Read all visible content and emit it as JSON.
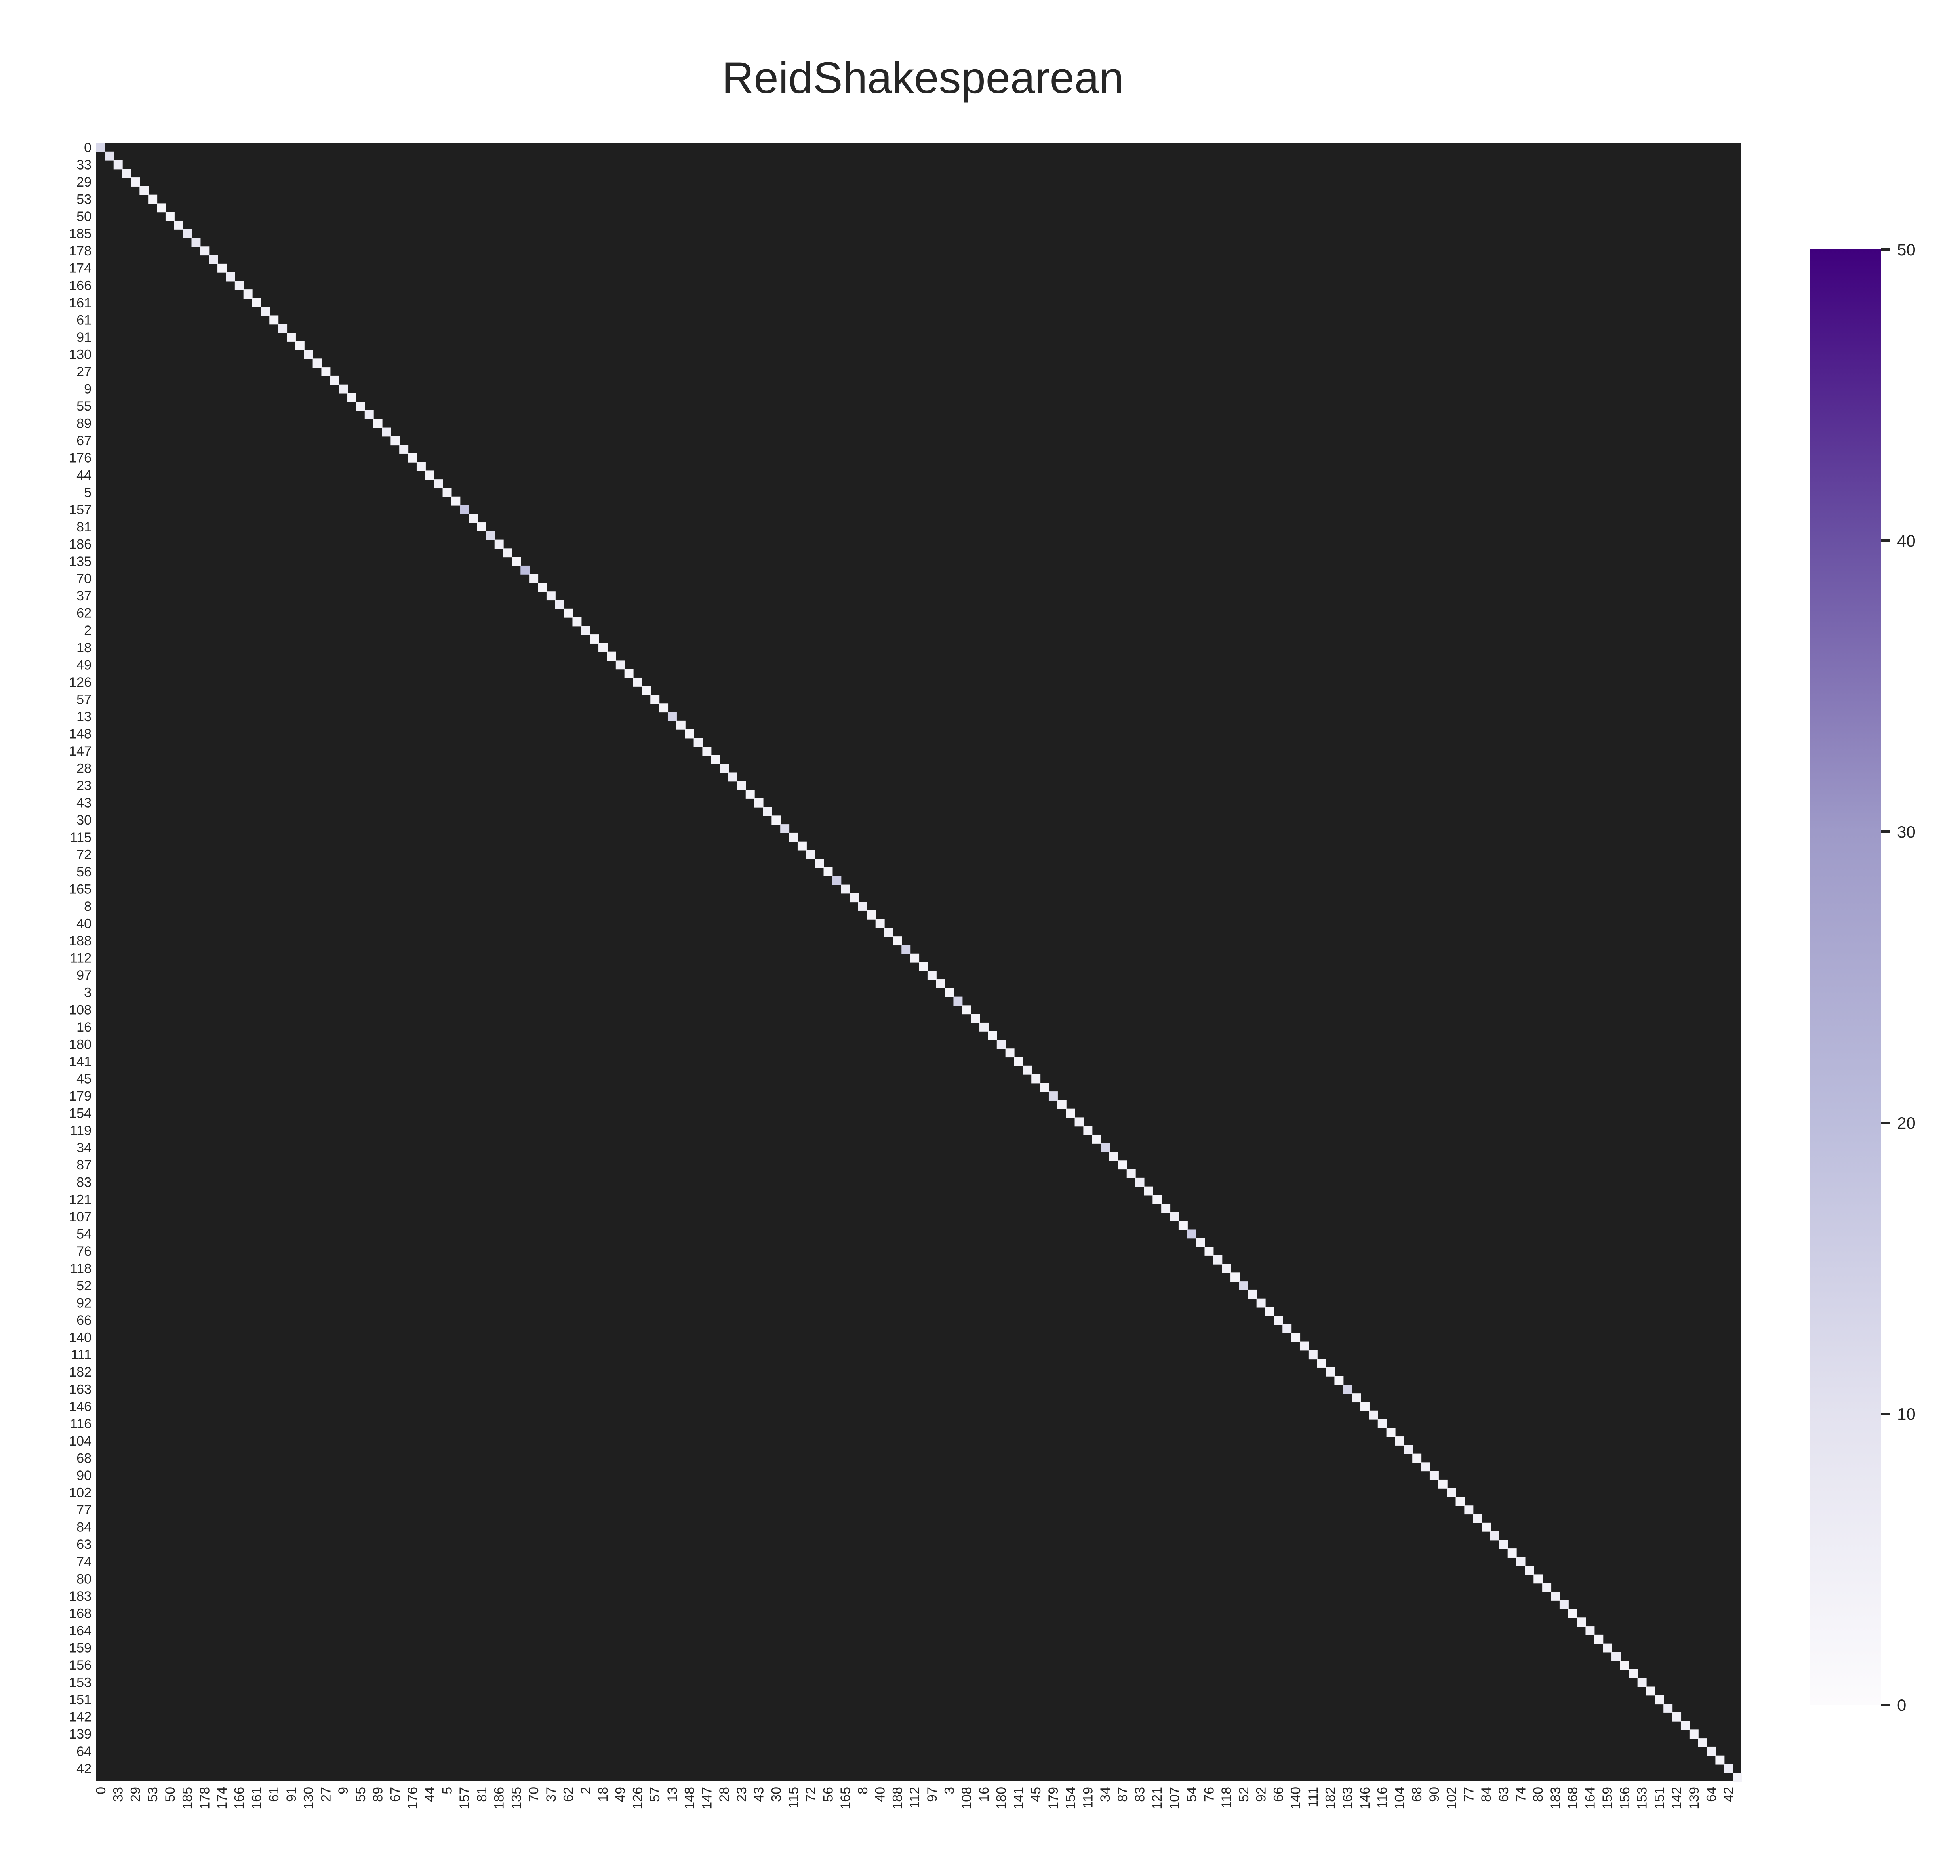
{
  "chart_data": {
    "type": "heatmap",
    "title": "ReidShakespearean",
    "xlabel": "",
    "ylabel": "",
    "colormap": "Purples",
    "colors": {
      "low": "#fcfbfd",
      "mid": "#9e9ac8",
      "high": "#3f007d",
      "line": "#1a1a1a",
      "text": "#262626"
    },
    "vmin": 0,
    "vmax": 50,
    "colorbar_ticks": [
      0,
      10,
      20,
      30,
      40,
      50
    ],
    "grid": true,
    "annotated_cells": true,
    "ticks": {
      "x": [
        "0",
        "33",
        "29",
        "53",
        "50",
        "185",
        "178",
        "174",
        "166",
        "161",
        "61",
        "91",
        "130",
        "27",
        "9",
        "55",
        "89",
        "67",
        "176",
        "44",
        "5",
        "157",
        "81",
        "186",
        "135",
        "70",
        "37",
        "62",
        "2",
        "18",
        "49",
        "126",
        "57",
        "13",
        "148",
        "147",
        "28",
        "23",
        "43",
        "30",
        "115",
        "72",
        "56",
        "165",
        "8",
        "40",
        "188",
        "112",
        "97",
        "3",
        "108",
        "16",
        "180",
        "141",
        "45",
        "179",
        "154",
        "119",
        "34",
        "87",
        "83",
        "121",
        "107",
        "54",
        "76",
        "118",
        "52",
        "92",
        "66",
        "140",
        "111",
        "182",
        "163",
        "146",
        "116",
        "104",
        "68",
        "90",
        "102",
        "77",
        "84",
        "63",
        "74",
        "80",
        "183",
        "168",
        "164",
        "159",
        "156",
        "153",
        "151",
        "142",
        "139",
        "64",
        "42"
      ],
      "y": [
        "0",
        "33",
        "29",
        "53",
        "50",
        "185",
        "178",
        "174",
        "166",
        "161",
        "61",
        "91",
        "130",
        "27",
        "9",
        "55",
        "89",
        "67",
        "176",
        "44",
        "5",
        "157",
        "81",
        "186",
        "135",
        "70",
        "37",
        "62",
        "2",
        "18",
        "49",
        "126",
        "57",
        "13",
        "148",
        "147",
        "28",
        "23",
        "43",
        "30",
        "115",
        "72",
        "56",
        "165",
        "8",
        "40",
        "188",
        "112",
        "97",
        "3",
        "108",
        "16",
        "180",
        "141",
        "45",
        "179",
        "154",
        "119",
        "34",
        "87",
        "83",
        "121",
        "107",
        "54",
        "76",
        "118",
        "52",
        "92",
        "66",
        "140",
        "111",
        "182",
        "163",
        "146",
        "116",
        "104",
        "68",
        "90",
        "102",
        "77",
        "84",
        "63",
        "74",
        "80",
        "183",
        "168",
        "164",
        "159",
        "156",
        "153",
        "151",
        "142",
        "139",
        "64",
        "42"
      ]
    },
    "matrix_size": 190,
    "diagonal_values_approx": [
      13,
      10,
      6,
      5,
      4,
      4,
      3,
      2,
      3,
      4,
      8,
      9,
      5,
      7,
      3,
      6,
      5,
      4,
      3,
      5,
      3,
      6,
      4,
      3,
      5,
      4,
      3,
      4,
      5,
      3,
      4,
      6,
      3,
      6,
      4,
      5,
      3,
      4,
      3,
      5,
      4,
      3,
      18,
      4,
      3,
      12,
      5,
      4,
      3,
      20,
      4,
      3,
      5,
      6,
      3,
      4,
      5,
      3,
      4,
      3,
      5,
      3,
      4,
      3,
      4,
      3,
      14,
      4,
      3,
      5,
      4,
      3,
      5,
      6,
      4,
      3,
      4,
      5,
      3,
      12,
      4,
      3,
      5,
      4,
      3,
      16,
      5,
      4,
      6,
      3,
      4,
      5,
      3,
      15,
      4,
      3,
      5,
      4,
      3,
      14,
      3,
      4,
      5,
      3,
      6,
      4,
      3,
      5,
      4,
      3,
      12,
      4,
      3,
      5,
      4,
      3,
      14,
      4,
      3,
      5,
      6,
      4,
      3,
      4,
      5,
      3,
      16,
      4,
      3,
      5,
      4,
      3,
      12,
      4,
      5,
      3,
      4,
      6,
      3,
      4,
      5,
      3,
      4,
      3,
      14,
      4,
      3,
      5,
      4,
      3,
      4,
      6,
      3,
      5,
      4,
      3,
      4,
      3,
      5,
      4,
      3,
      6,
      4,
      3,
      5,
      4,
      3,
      4,
      5,
      6,
      3,
      4,
      5,
      3,
      4,
      6,
      3,
      4,
      5,
      3,
      4,
      6,
      5,
      4,
      3,
      4,
      5,
      3,
      6,
      4
    ]
  }
}
